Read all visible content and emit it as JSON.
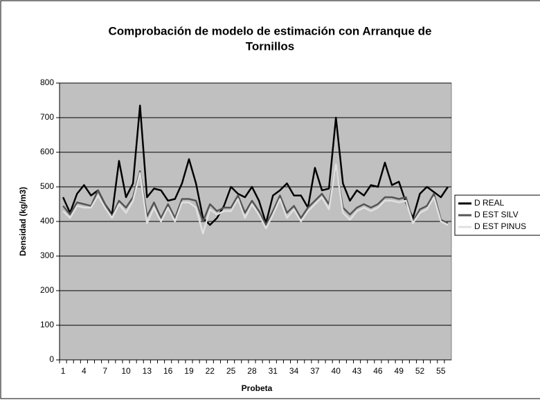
{
  "chart_data": {
    "type": "line",
    "title": [
      "Comprobación de modelo de estimación con Arranque de",
      "Tornillos"
    ],
    "x_label": "Probeta",
    "y_label": "Densidad (kg/m3)",
    "categories": [
      1,
      null,
      null,
      4,
      null,
      null,
      7,
      null,
      null,
      10,
      null,
      null,
      13,
      null,
      null,
      16,
      null,
      null,
      19,
      null,
      null,
      22,
      null,
      null,
      25,
      null,
      null,
      28,
      null,
      null,
      31,
      null,
      null,
      34,
      null,
      null,
      37,
      null,
      null,
      40,
      null,
      null,
      43,
      null,
      null,
      46,
      null,
      null,
      49,
      null,
      null,
      52,
      null,
      null,
      55,
      null
    ],
    "ylim": [
      0,
      800
    ],
    "yticks": [
      0,
      100,
      200,
      300,
      400,
      500,
      600,
      700,
      800
    ],
    "grid": true,
    "legend": "right",
    "background": "#c0c0c0",
    "series": [
      {
        "name": "D REAL",
        "color": "#000000",
        "values": [
          470,
          425,
          480,
          505,
          475,
          490,
          450,
          420,
          575,
          470,
          510,
          735,
          470,
          495,
          490,
          460,
          465,
          510,
          580,
          510,
          410,
          390,
          410,
          445,
          500,
          480,
          470,
          500,
          460,
          395,
          475,
          490,
          510,
          475,
          475,
          440,
          555,
          490,
          495,
          700,
          510,
          460,
          490,
          475,
          505,
          500,
          570,
          505,
          515,
          455,
          410,
          480,
          500,
          485,
          470,
          500
        ]
      },
      {
        "name": "D EST SILV",
        "color": "#555555",
        "values": [
          445,
          420,
          455,
          450,
          445,
          490,
          450,
          415,
          460,
          440,
          470,
          545,
          415,
          455,
          410,
          450,
          410,
          465,
          465,
          460,
          400,
          450,
          430,
          440,
          440,
          475,
          425,
          460,
          430,
          390,
          430,
          475,
          425,
          445,
          410,
          440,
          460,
          480,
          450,
          560,
          440,
          420,
          440,
          450,
          440,
          450,
          470,
          470,
          465,
          470,
          400,
          435,
          445,
          480,
          405,
          395
        ]
      },
      {
        "name": "D EST PINUS",
        "color": "#e0e0e0",
        "values": [
          430,
          410,
          445,
          440,
          440,
          475,
          440,
          410,
          450,
          425,
          460,
          540,
          395,
          440,
          400,
          440,
          400,
          455,
          455,
          440,
          365,
          435,
          420,
          430,
          430,
          465,
          410,
          450,
          420,
          380,
          420,
          465,
          410,
          435,
          400,
          430,
          450,
          470,
          435,
          565,
          425,
          405,
          430,
          440,
          430,
          440,
          460,
          460,
          455,
          460,
          395,
          425,
          435,
          470,
          400,
          390
        ]
      }
    ]
  }
}
